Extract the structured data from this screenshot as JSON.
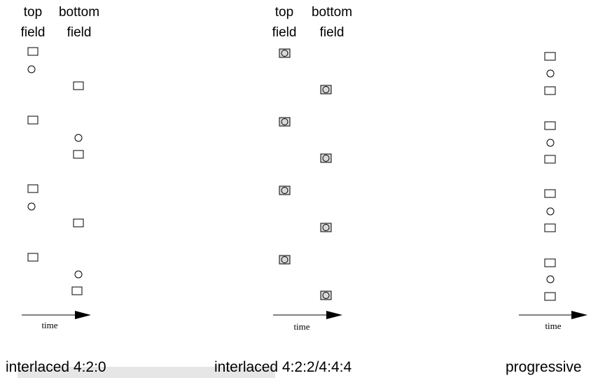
{
  "headers": {
    "top_1": "top",
    "top_2": "field",
    "bottom_1": "bottom",
    "bottom_2": "field"
  },
  "time_label": "time",
  "captions": {
    "interlaced_420": "interlaced 4:2:0",
    "interlaced_422_444": "interlaced 4:2:2/4:4:4",
    "progressive": "progressive"
  },
  "colors": {
    "stroke": "#000000",
    "caption_highlight": "#e6e6e6"
  }
}
